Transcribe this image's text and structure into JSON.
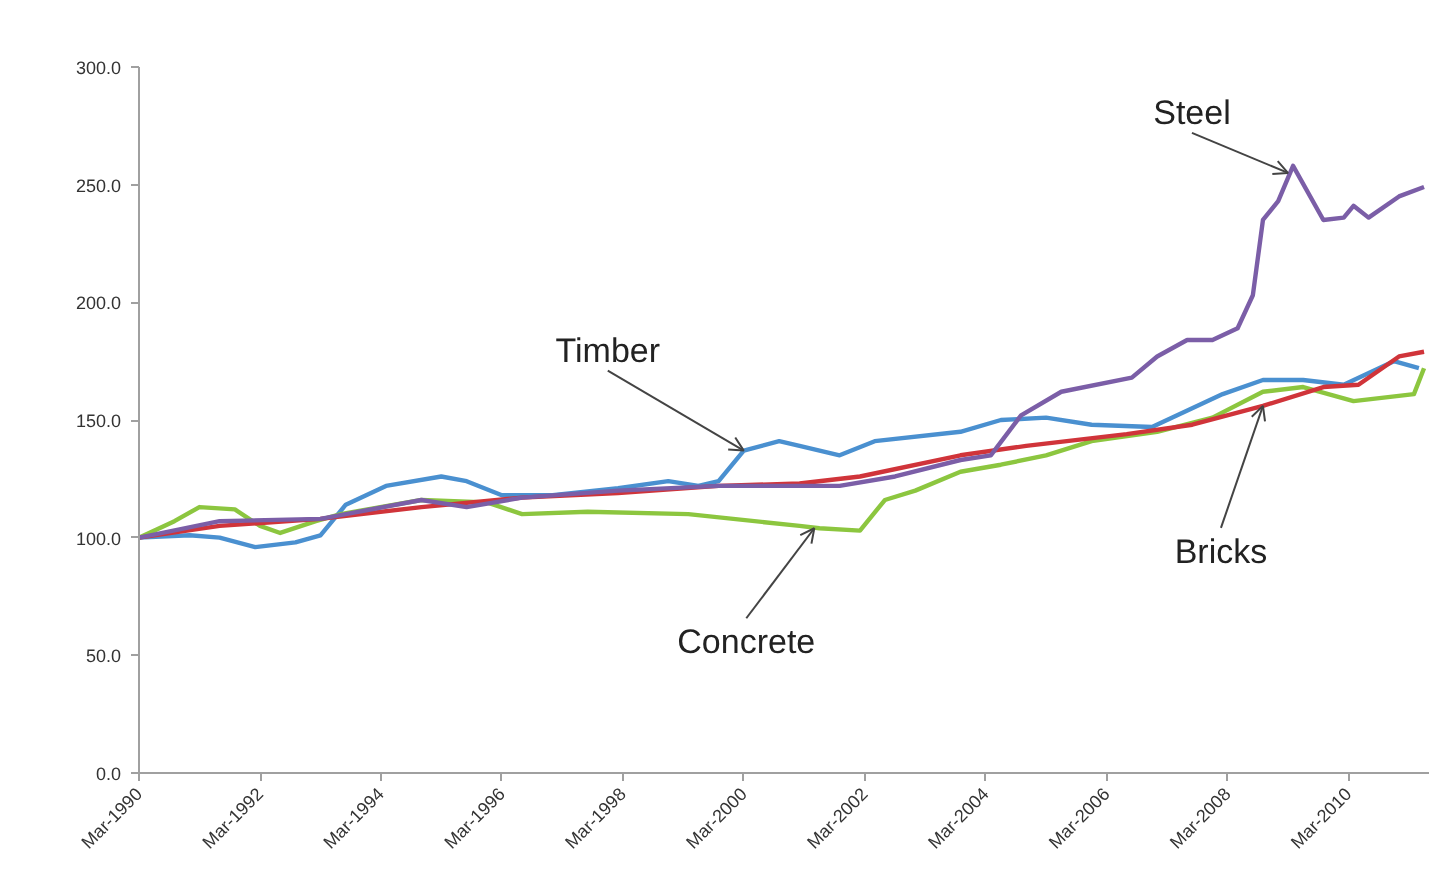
{
  "chart_data": {
    "type": "line",
    "xlim": [
      "1990-03",
      "2011-07"
    ],
    "ylim": [
      0,
      300
    ],
    "xticks": [
      {
        "value": "1990-03",
        "label": "Mar-1990"
      },
      {
        "value": "1992-03",
        "label": "Mar-1992"
      },
      {
        "value": "1994-03",
        "label": "Mar-1994"
      },
      {
        "value": "1996-03",
        "label": "Mar-1996"
      },
      {
        "value": "1998-03",
        "label": "Mar-1998"
      },
      {
        "value": "2000-03",
        "label": "Mar-2000"
      },
      {
        "value": "2002-03",
        "label": "Mar-2002"
      },
      {
        "value": "2004-03",
        "label": "Mar-2004"
      },
      {
        "value": "2006-03",
        "label": "Mar-2006"
      },
      {
        "value": "2008-03",
        "label": "Mar-2008"
      },
      {
        "value": "2010-03",
        "label": "Mar-2010"
      }
    ],
    "yticks": [
      {
        "value": 0,
        "label": "0.0"
      },
      {
        "value": 50,
        "label": "50.0"
      },
      {
        "value": 100,
        "label": "100.0"
      },
      {
        "value": 150,
        "label": "150.0"
      },
      {
        "value": 200,
        "label": "200.0"
      },
      {
        "value": 250,
        "label": "250.0"
      },
      {
        "value": 300,
        "label": "300.0"
      }
    ],
    "grid": false,
    "marker": "none",
    "line_style": "solid",
    "series": [
      {
        "color": "#4a90d0",
        "x": [
          "1990-03",
          "1991-01",
          "1991-07",
          "1992-02",
          "1992-10",
          "1993-03",
          "1993-08",
          "1994-04",
          "1995-03",
          "1995-08",
          "1996-03",
          "1997-01",
          "1998-02",
          "1998-12",
          "1999-06",
          "1999-10",
          "2000-03",
          "2000-10",
          "2001-02",
          "2001-10",
          "2002-05",
          "2003-10",
          "2004-06",
          "2005-03",
          "2005-12",
          "2006-12",
          "2008-02",
          "2008-10",
          "2009-06",
          "2010-02",
          "2010-12",
          "2011-05"
        ],
        "values": [
          100,
          101,
          100,
          96,
          98,
          101,
          114,
          122,
          126,
          124,
          118,
          118,
          121,
          124,
          122,
          124,
          137,
          141,
          139,
          135,
          141,
          145,
          150,
          151,
          148,
          147,
          161,
          167,
          167,
          165,
          175,
          172
        ]
      },
      {
        "color": "#8cc63f",
        "x": [
          "1990-03",
          "1990-10",
          "1991-03",
          "1991-10",
          "1992-03",
          "1992-07",
          "1993-02",
          "1993-07",
          "1994-11",
          "1995-12",
          "1996-07",
          "1997-08",
          "1999-04",
          "2001-02",
          "2001-06",
          "2002-02",
          "2002-07",
          "2003-01",
          "2003-10",
          "2004-06",
          "2005-03",
          "2005-12",
          "2007-01",
          "2007-12",
          "2008-10",
          "2009-06",
          "2010-04",
          "2011-04",
          "2011-06"
        ],
        "values": [
          100,
          107,
          113,
          112,
          105,
          102,
          107,
          110,
          116,
          115,
          110,
          111,
          110,
          105,
          104,
          103,
          116,
          120,
          128,
          131,
          135,
          141,
          145,
          151,
          162,
          164,
          158,
          161,
          172
        ]
      },
      {
        "color": "#d0343a",
        "x": [
          "1990-03",
          "1991-07",
          "1993-03",
          "1994-11",
          "1996-07",
          "1998-02",
          "1999-10",
          "2001-02",
          "2002-02",
          "2003-10",
          "2004-11",
          "2006-07",
          "2007-08",
          "2008-10",
          "2009-10",
          "2010-05",
          "2011-01",
          "2011-06"
        ],
        "values": [
          100,
          105,
          108,
          113,
          117,
          119,
          122,
          123,
          126,
          135,
          139,
          144,
          148,
          156,
          164,
          165,
          177,
          179
        ]
      },
      {
        "color": "#7b5ea7",
        "x": [
          "1990-03",
          "1991-07",
          "1993-03",
          "1994-11",
          "1995-08",
          "1996-07",
          "1998-02",
          "1999-10",
          "2001-02",
          "2001-10",
          "2002-09",
          "2003-10",
          "2004-04",
          "2004-10",
          "2005-06",
          "2006-08",
          "2007-01",
          "2007-07",
          "2007-12",
          "2008-05",
          "2008-08",
          "2008-10",
          "2009-01",
          "2009-04",
          "2009-10",
          "2010-02",
          "2010-04",
          "2010-07",
          "2011-01",
          "2011-06"
        ],
        "values": [
          100,
          107,
          108,
          116,
          113,
          117,
          120,
          122,
          122,
          122,
          126,
          133,
          135,
          152,
          162,
          168,
          177,
          184,
          184,
          189,
          203,
          235,
          243,
          258,
          235,
          236,
          241,
          236,
          245,
          249
        ]
      }
    ],
    "annotations": [
      {
        "text": "Steel",
        "x": "2009-03",
        "y": 255
      },
      {
        "text": "Timber",
        "x": "2000-03",
        "y": 137
      },
      {
        "text": "Concrete",
        "x": "2001-05",
        "y": 104
      },
      {
        "text": "Bricks",
        "x": "2008-10",
        "y": 156
      }
    ]
  }
}
